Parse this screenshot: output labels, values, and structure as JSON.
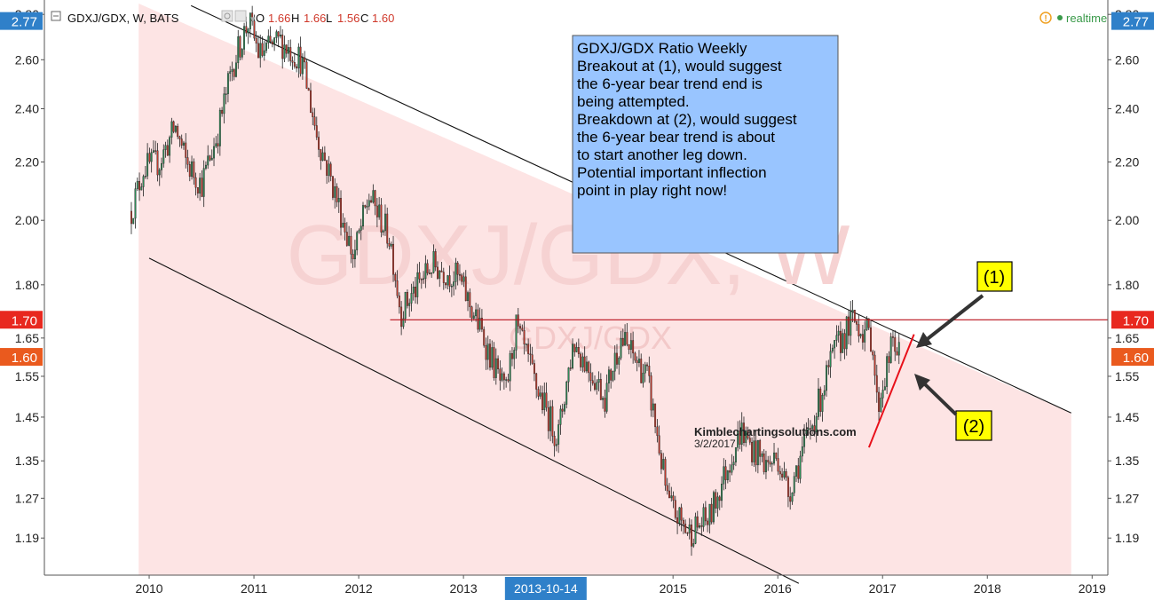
{
  "header": {
    "symbol_text": "GDXJ/GDX, W, BATS",
    "ohlc": [
      {
        "label": "O",
        "value": "1.66"
      },
      {
        "label": "H",
        "value": "1.66"
      },
      {
        "label": "L",
        "value": "1.56"
      },
      {
        "label": "C",
        "value": "1.60"
      }
    ],
    "realtime_label": "realtime",
    "alert_glyph": "!"
  },
  "watermark": {
    "big": "GDXJ/GDX, W",
    "small": "GDXJ/GDX"
  },
  "annotation_box": {
    "title": "GDXJ/GDX Ratio Weekly",
    "lines": [
      "Breakout at (1), would suggest",
      "the 6-year bear trend end is",
      "being attempted.",
      "",
      "Breakdown at (2), would suggest",
      "the 6-year bear trend is about",
      "to start another leg down.",
      "",
      "Potential important inflection",
      "point in play right now!"
    ]
  },
  "callouts": {
    "one": "(1)",
    "two": "(2)"
  },
  "credit": {
    "site": "Kimblechartingsolutions.com",
    "date": "3/2/2017"
  },
  "colors": {
    "up_candle": "#2e8b57",
    "down_candle": "#c0392b",
    "channel_fill": "#fde4e4",
    "price_label_high": "#e8281f",
    "price_label_last": "#ea5a1e",
    "first_label": "#2f80c9",
    "callout_fill": "#ffff00",
    "box_fill": "#99c5ff"
  },
  "chart_data": {
    "type": "candlestick",
    "title": "GDXJ/GDX Ratio Weekly",
    "y_scale": "log",
    "ylim": [
      1.12,
      2.85
    ],
    "y_ticks": [
      "2.80",
      "2.60",
      "2.40",
      "2.20",
      "2.00",
      "1.80",
      "1.65",
      "1.55",
      "1.45",
      "1.35",
      "1.27",
      "1.19"
    ],
    "y_badges": [
      {
        "value": "2.77",
        "kind": "first"
      },
      {
        "value": "1.70",
        "kind": "level"
      },
      {
        "value": "1.60",
        "kind": "last"
      }
    ],
    "x_ticks": [
      "2010",
      "2011",
      "2012",
      "2013",
      "2013-10-14",
      "2015",
      "2016",
      "2017",
      "2018",
      "2019"
    ],
    "x_range_years": [
      2009.0,
      2019.15
    ],
    "highlight_date": "2013-10-14",
    "anchors": [
      {
        "t": 2009.83,
        "v": 2.03
      },
      {
        "t": 2009.95,
        "v": 2.18
      },
      {
        "t": 2010.1,
        "v": 2.2
      },
      {
        "t": 2010.25,
        "v": 2.33
      },
      {
        "t": 2010.35,
        "v": 2.2
      },
      {
        "t": 2010.5,
        "v": 2.12
      },
      {
        "t": 2010.65,
        "v": 2.3
      },
      {
        "t": 2010.8,
        "v": 2.58
      },
      {
        "t": 2010.95,
        "v": 2.77
      },
      {
        "t": 2011.05,
        "v": 2.62
      },
      {
        "t": 2011.25,
        "v": 2.68
      },
      {
        "t": 2011.45,
        "v": 2.6
      },
      {
        "t": 2011.6,
        "v": 2.3
      },
      {
        "t": 2011.75,
        "v": 2.12
      },
      {
        "t": 2011.95,
        "v": 1.88
      },
      {
        "t": 2012.1,
        "v": 2.08
      },
      {
        "t": 2012.3,
        "v": 1.94
      },
      {
        "t": 2012.4,
        "v": 1.72
      },
      {
        "t": 2012.7,
        "v": 1.86
      },
      {
        "t": 2012.95,
        "v": 1.82
      },
      {
        "t": 2013.15,
        "v": 1.68
      },
      {
        "t": 2013.4,
        "v": 1.5
      },
      {
        "t": 2013.5,
        "v": 1.68
      },
      {
        "t": 2013.7,
        "v": 1.52
      },
      {
        "t": 2013.9,
        "v": 1.4
      },
      {
        "t": 2014.05,
        "v": 1.64
      },
      {
        "t": 2014.35,
        "v": 1.5
      },
      {
        "t": 2014.5,
        "v": 1.65
      },
      {
        "t": 2014.75,
        "v": 1.55
      },
      {
        "t": 2014.95,
        "v": 1.26
      },
      {
        "t": 2015.15,
        "v": 1.2
      },
      {
        "t": 2015.35,
        "v": 1.23
      },
      {
        "t": 2015.65,
        "v": 1.42
      },
      {
        "t": 2015.75,
        "v": 1.38
      },
      {
        "t": 2015.9,
        "v": 1.34
      },
      {
        "t": 2016.0,
        "v": 1.36
      },
      {
        "t": 2016.1,
        "v": 1.28
      },
      {
        "t": 2016.35,
        "v": 1.45
      },
      {
        "t": 2016.55,
        "v": 1.62
      },
      {
        "t": 2016.72,
        "v": 1.7
      },
      {
        "t": 2016.9,
        "v": 1.65
      },
      {
        "t": 2016.95,
        "v": 1.47
      },
      {
        "t": 2017.1,
        "v": 1.64
      },
      {
        "t": 2017.17,
        "v": 1.6
      }
    ],
    "channel": {
      "upper": [
        {
          "t": 2010.4,
          "v": 2.84
        },
        {
          "t": 2018.8,
          "v": 1.46
        }
      ],
      "lower": [
        {
          "t": 2010.0,
          "v": 1.88
        },
        {
          "t": 2016.2,
          "v": 1.105
        }
      ]
    },
    "horizontal_level": {
      "value": 1.7,
      "t_start": 2012.3,
      "t_end": 2019.15
    },
    "trend_line_2": [
      {
        "t": 2016.87,
        "v": 1.38
      },
      {
        "t": 2017.3,
        "v": 1.66
      }
    ]
  }
}
